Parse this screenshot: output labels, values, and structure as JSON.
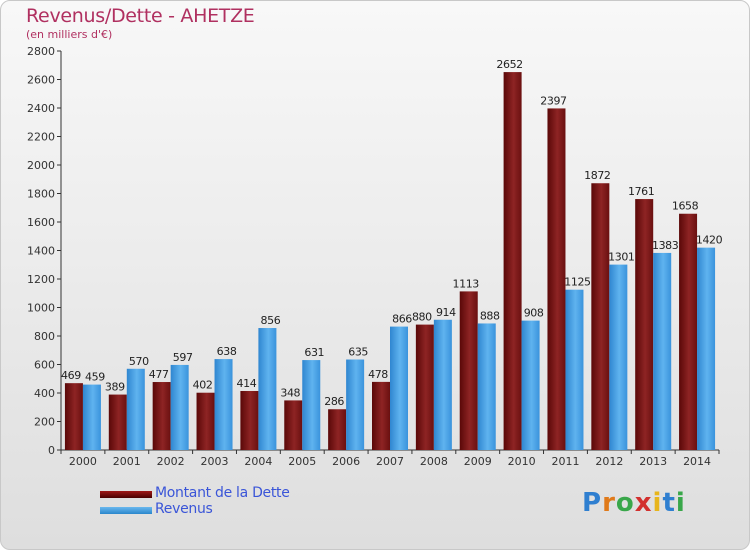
{
  "chart_data": {
    "type": "bar",
    "title": "Revenus/Dette - AHETZE",
    "subtitle": "(en milliers d'€)",
    "categories": [
      "2000",
      "2001",
      "2002",
      "2003",
      "2004",
      "2005",
      "2006",
      "2007",
      "2008",
      "2009",
      "2010",
      "2011",
      "2012",
      "2013",
      "2014"
    ],
    "series": [
      {
        "name": "Montant de la Dette",
        "color": "#7a1010",
        "values": [
          469,
          389,
          477,
          402,
          414,
          348,
          286,
          478,
          880,
          1113,
          2652,
          2397,
          1872,
          1761,
          1658
        ]
      },
      {
        "name": "Revenus",
        "color": "#3f9be0",
        "values": [
          459,
          570,
          597,
          638,
          856,
          631,
          635,
          866,
          914,
          888,
          908,
          1125,
          1301,
          1383,
          1420
        ]
      }
    ],
    "ylim": [
      0,
      2800
    ],
    "yticks": [
      0,
      200,
      400,
      600,
      800,
      1000,
      1200,
      1400,
      1600,
      1800,
      2000,
      2200,
      2400,
      2600,
      2800
    ],
    "grid": false,
    "legend_position": "bottom-left"
  },
  "branding": {
    "logo_letters": [
      "P",
      "r",
      "o",
      "x",
      "i",
      "t",
      "i"
    ]
  }
}
